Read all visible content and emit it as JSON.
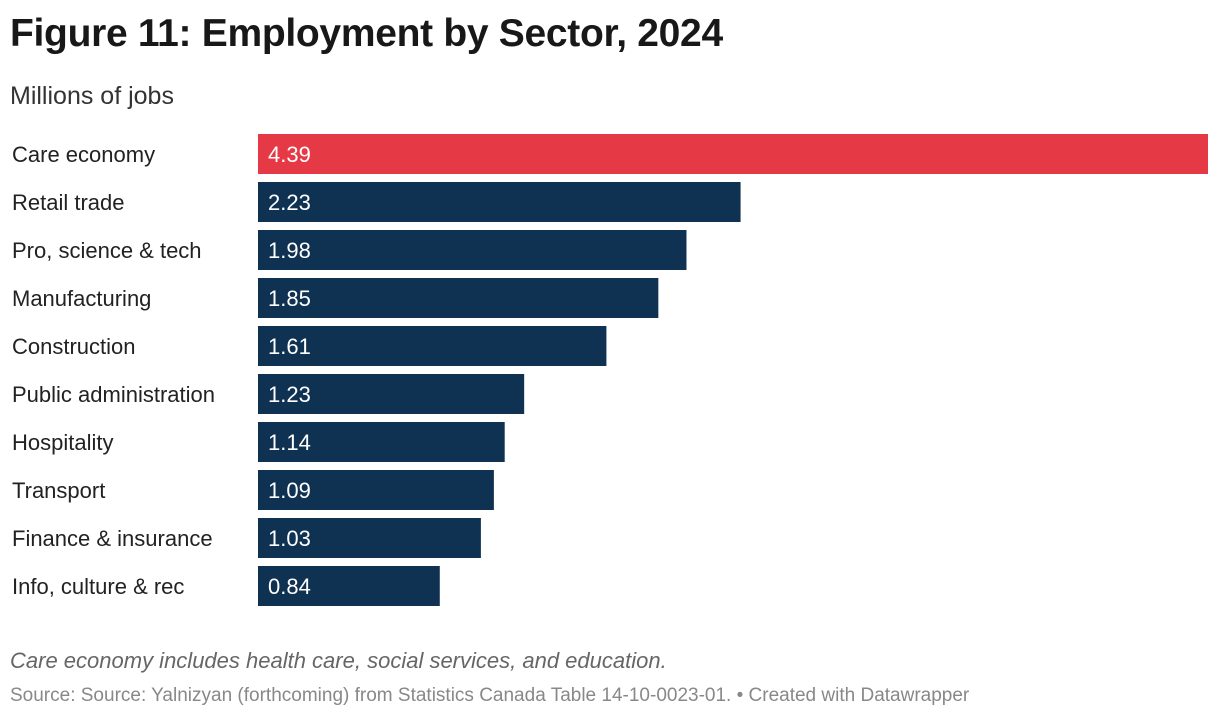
{
  "title": "Figure 11: Employment by Sector, 2024",
  "subtitle": "Millions of jobs",
  "chart_data": {
    "type": "bar",
    "orientation": "horizontal",
    "categories": [
      "Care economy",
      "Retail trade",
      "Pro, science & tech",
      "Manufacturing",
      "Construction",
      "Public administration",
      "Hospitality",
      "Transport",
      "Finance & insurance",
      "Info, culture & rec"
    ],
    "values": [
      4.39,
      2.23,
      1.98,
      1.85,
      1.61,
      1.23,
      1.14,
      1.09,
      1.03,
      0.84
    ],
    "data_labels": [
      "4.39",
      "2.23",
      "1.98",
      "1.85",
      "1.61",
      "1.23",
      "1.14",
      "1.09",
      "1.03",
      "0.84"
    ],
    "highlight_index": 0,
    "colors": {
      "highlight": "#e63946",
      "default": "#0f3152"
    },
    "xlim": [
      0,
      4.39
    ],
    "grid": false
  },
  "note": "Care economy includes health care, social services, and education.",
  "source": "Source: Source: Yalnizyan (forthcoming) from Statistics Canada Table 14-10-0023-01.  • Created with Datawrapper"
}
